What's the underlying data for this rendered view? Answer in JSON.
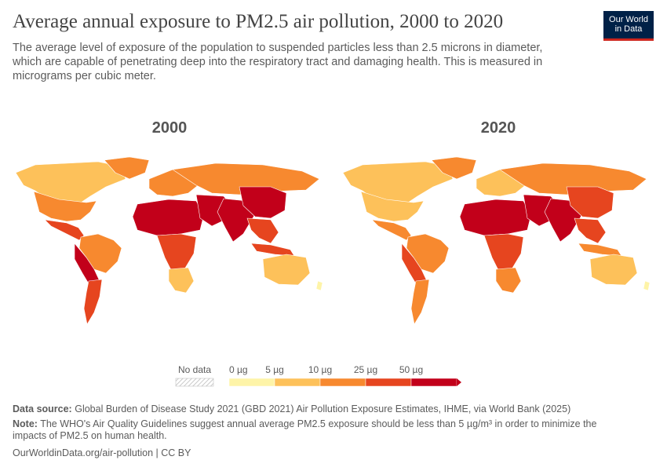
{
  "header": {
    "title": "Average annual exposure to PM2.5 air pollution, 2000 to 2020",
    "subtitle": "The average level of exposure of the population to suspended particles less than 2.5 microns in diameter, which are capable of penetrating deep into the respiratory tract and damaging health. This is measured in micrograms per cubic meter.",
    "logo_line1": "Our World",
    "logo_line2": "in Data"
  },
  "maps": [
    {
      "year_label": "2000"
    },
    {
      "year_label": "2020"
    }
  ],
  "legend": {
    "no_data_label": "No data",
    "bins": [
      {
        "label": "0 µg",
        "color": "#fef4a8"
      },
      {
        "label": "5 µg",
        "color": "#fdc15a"
      },
      {
        "label": "10 µg",
        "color": "#f7892f"
      },
      {
        "label": "25 µg",
        "color": "#e6451f"
      },
      {
        "label": "50 µg",
        "color": "#c2001a"
      }
    ]
  },
  "footer": {
    "source_label": "Data source:",
    "source_text": "Global Burden of Disease Study 2021 (GBD 2021) Air Pollution Exposure Estimates, IHME, via World Bank (2025)",
    "note_label": "Note:",
    "note_text": "The WHO's Air Quality Guidelines suggest annual average PM2.5 exposure should be less than 5 µg/m³ in order to minimize the impacts of PM2.5 on human health.",
    "url": "OurWorldinData.org/air-pollution | CC BY"
  }
}
